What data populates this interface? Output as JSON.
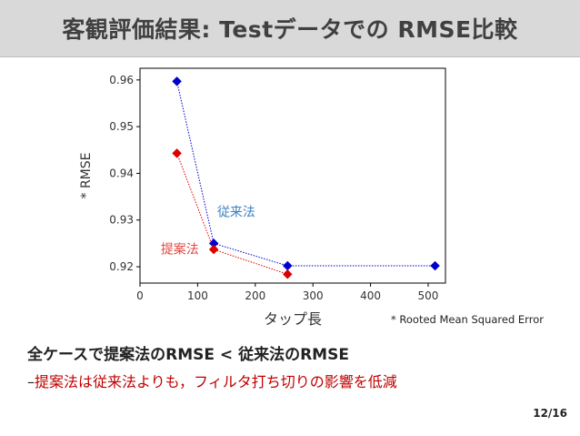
{
  "slide": {
    "title": "客観評価結果: Testデータでの RMSE比較",
    "footnote": "* Rooted Mean Squared Error",
    "bullet_main": "全ケースで提案法のRMSE < 従来法のRMSE",
    "bullet_sub_dash": "–",
    "bullet_sub_text": "提案法は従来法よりも，フィルタ打ち切りの影響を低減",
    "page_number": "12/16"
  },
  "chart_data": {
    "type": "line",
    "xlabel": "タップ長",
    "ylabel": "* RMSE",
    "xlim": [
      0,
      530
    ],
    "ylim": [
      0.9165,
      0.9625
    ],
    "xticks": [
      0,
      100,
      200,
      300,
      400,
      500
    ],
    "yticks": [
      0.92,
      0.93,
      0.94,
      0.95,
      0.96
    ],
    "xtick_labels": [
      "0",
      "100",
      "200",
      "300",
      "400",
      "500"
    ],
    "ytick_labels": [
      "0.92",
      "0.93",
      "0.94",
      "0.95",
      "0.96"
    ],
    "grid": false,
    "series": [
      {
        "name": "従来法",
        "color": "#0000cc",
        "label_color": "#3b7fc4",
        "marker": "diamond",
        "line_style": "dotted",
        "x": [
          64,
          128,
          256,
          512
        ],
        "y": [
          0.9597,
          0.925,
          0.9202,
          0.9202
        ]
      },
      {
        "name": "提案法",
        "color": "#dd0000",
        "label_color": "#e0473f",
        "marker": "diamond",
        "line_style": "dotted",
        "x": [
          64,
          128,
          256
        ],
        "y": [
          0.9443,
          0.9237,
          0.9184
        ]
      }
    ],
    "annotations": [
      {
        "text": "従来法",
        "series": 0,
        "x": 134,
        "y": 0.9308
      },
      {
        "text": "提案法",
        "series": 1,
        "x": 36,
        "y": 0.9228
      }
    ]
  }
}
